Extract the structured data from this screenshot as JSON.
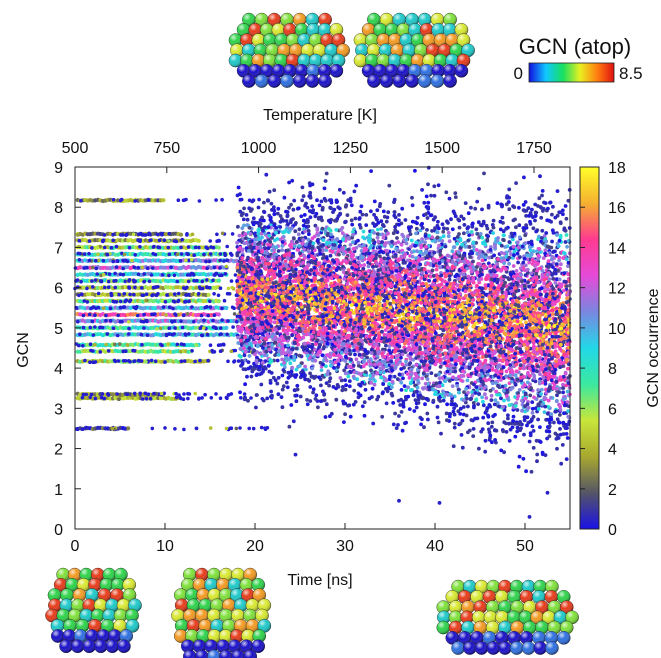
{
  "chart_data": {
    "type": "scatter",
    "xlabel": "Time [ns]",
    "ylabel": "GCN",
    "xlim": [
      0,
      55
    ],
    "ylim": [
      0,
      9
    ],
    "x_ticks": [
      0,
      10,
      20,
      30,
      40,
      50
    ],
    "y_ticks": [
      0,
      1,
      2,
      3,
      4,
      5,
      6,
      7,
      8,
      9
    ],
    "top_axis": {
      "label": "Temperature [K]",
      "ticks": [
        {
          "time_ns": 0,
          "label": "500"
        },
        {
          "time_ns": 10.2,
          "label": "750"
        },
        {
          "time_ns": 20.4,
          "label": "1000"
        },
        {
          "time_ns": 30.6,
          "label": "1250"
        },
        {
          "time_ns": 40.8,
          "label": "1500"
        },
        {
          "time_ns": 51.0,
          "label": "1750"
        }
      ]
    },
    "colorbar": {
      "label": "GCN occurrence",
      "range": [
        0,
        18
      ],
      "ticks": [
        0,
        2,
        4,
        6,
        8,
        10,
        12,
        14,
        16,
        18
      ],
      "colors": [
        "#1a12e6",
        "#555566",
        "#a8a830",
        "#c8e63a",
        "#3be8a0",
        "#22d8e8",
        "#7a86e0",
        "#e64ad8",
        "#ff3a90",
        "#f5b030",
        "#ffff2a"
      ]
    },
    "grid": false,
    "discrete_levels_early": [
      {
        "gcn": 2.5,
        "occurrence": 1,
        "t_end": 6
      },
      {
        "gcn": 3.25,
        "occurrence": 4,
        "t_end": 12
      },
      {
        "gcn": 3.35,
        "occurrence": 3,
        "t_end": 10
      },
      {
        "gcn": 4.17,
        "occurrence": 5,
        "t_end": 15
      },
      {
        "gcn": 4.42,
        "occurrence": 6,
        "t_end": 13
      },
      {
        "gcn": 4.58,
        "occurrence": 7,
        "t_end": 14
      },
      {
        "gcn": 4.83,
        "occurrence": 9,
        "t_end": 18
      },
      {
        "gcn": 5.0,
        "occurrence": 8,
        "t_end": 17
      },
      {
        "gcn": 5.17,
        "occurrence": 11,
        "t_end": 19
      },
      {
        "gcn": 5.33,
        "occurrence": 14,
        "t_end": 16
      },
      {
        "gcn": 5.5,
        "occurrence": 10,
        "t_end": 17
      },
      {
        "gcn": 5.67,
        "occurrence": 6,
        "t_end": 16
      },
      {
        "gcn": 5.83,
        "occurrence": 4,
        "t_end": 15
      },
      {
        "gcn": 6.0,
        "occurrence": 5,
        "t_end": 16
      },
      {
        "gcn": 6.17,
        "occurrence": 7,
        "t_end": 16
      },
      {
        "gcn": 6.33,
        "occurrence": 9,
        "t_end": 17
      },
      {
        "gcn": 6.5,
        "occurrence": 12,
        "t_end": 17
      },
      {
        "gcn": 6.67,
        "occurrence": 10,
        "t_end": 18
      },
      {
        "gcn": 6.83,
        "occurrence": 8,
        "t_end": 17
      },
      {
        "gcn": 7.0,
        "occurrence": 6,
        "t_end": 16
      },
      {
        "gcn": 7.17,
        "occurrence": 4,
        "t_end": 14
      },
      {
        "gcn": 7.33,
        "occurrence": 3,
        "t_end": 12
      },
      {
        "gcn": 8.17,
        "occurrence": 3,
        "t_end": 10
      }
    ],
    "continuous_phase": {
      "t_start": 18,
      "t_end": 55,
      "gcn_mean_start": 5.9,
      "gcn_mean_end": 5.0,
      "gcn_spread_start": 1.6,
      "gcn_spread_end": 2.2,
      "gcn_min": 0.3,
      "gcn_max": 9.0
    }
  },
  "inset_legend": {
    "title": "GCN (atop)",
    "min_label": "0",
    "max_label": "8.5",
    "colors": [
      "#1010e0",
      "#10c8ff",
      "#18e060",
      "#e8f020",
      "#ff8010",
      "#e01010"
    ]
  },
  "atom_palette": [
    "#1a10c8",
    "#2e6fe0",
    "#1ec8c8",
    "#2ed24a",
    "#7ee03a",
    "#d8e830",
    "#f29a22",
    "#e63b1a"
  ]
}
